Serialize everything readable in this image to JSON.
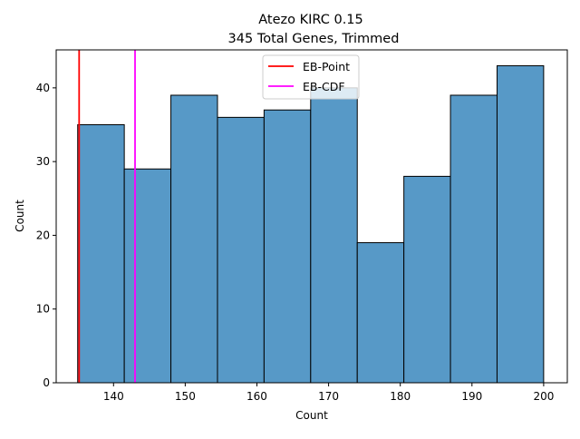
{
  "chart_data": {
    "type": "bar",
    "title": "Atezo KIRC 0.15",
    "subtitle": "345 Total Genes, Trimmed",
    "xlabel": "Count",
    "ylabel": "Count",
    "xlim": [
      132.0,
      203.3
    ],
    "ylim": [
      0,
      45.15
    ],
    "xticks": [
      140,
      150,
      160,
      170,
      180,
      190,
      200
    ],
    "yticks": [
      0,
      10,
      20,
      30,
      40
    ],
    "grid": false,
    "legend_position": "top-center",
    "bins": [
      {
        "x0": 135.0,
        "x1": 141.5,
        "count": 35
      },
      {
        "x0": 141.5,
        "x1": 148.0,
        "count": 29
      },
      {
        "x0": 148.0,
        "x1": 154.5,
        "count": 39
      },
      {
        "x0": 154.5,
        "x1": 161.0,
        "count": 36
      },
      {
        "x0": 161.0,
        "x1": 167.5,
        "count": 37
      },
      {
        "x0": 167.5,
        "x1": 174.0,
        "count": 40
      },
      {
        "x0": 174.0,
        "x1": 180.5,
        "count": 19
      },
      {
        "x0": 180.5,
        "x1": 187.0,
        "count": 28
      },
      {
        "x0": 187.0,
        "x1": 193.5,
        "count": 39
      },
      {
        "x0": 193.5,
        "x1": 200.0,
        "count": 43
      }
    ],
    "bar_color": "#5799c7",
    "vlines": [
      {
        "name": "EB-Point",
        "x": 135.2,
        "color": "#ff0000"
      },
      {
        "name": "EB-CDF",
        "x": 143.0,
        "color": "#ff00ff"
      }
    ]
  }
}
